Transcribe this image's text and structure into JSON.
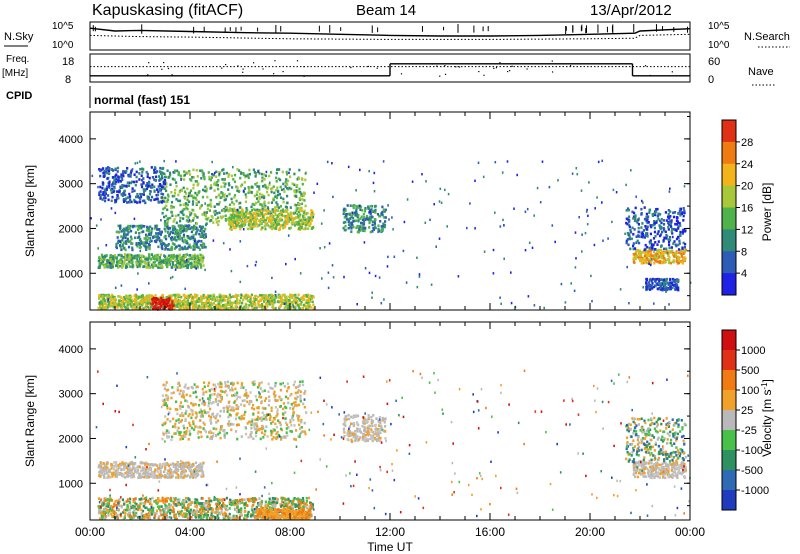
{
  "header": {
    "station": "Kapuskasing (fitACF)",
    "beam": "Beam 14",
    "date": "13/Apr/2012"
  },
  "left_labels": {
    "nsky": "N.Sky",
    "freq": "Freq.",
    "freq_unit": "[MHz]",
    "cpid": "CPID"
  },
  "right_labels": {
    "nsearch": "N.Search",
    "nave": "Nave"
  },
  "cpid_value": "normal (fast) 151",
  "chart_data": [
    {
      "type": "line",
      "title": "N.Sky / N.Search",
      "ylim_log10": [
        0,
        5
      ],
      "y_tick_labels_left": [
        "10^5",
        "10^0"
      ],
      "y_tick_labels_right": [
        "10^5",
        "10^0"
      ],
      "series": [
        {
          "name": "N.Sky",
          "style": "solid",
          "x_hours": [
            0,
            1,
            2,
            4,
            6,
            8,
            10,
            12,
            14,
            16,
            18,
            20,
            21.8,
            22,
            24
          ],
          "log10_values": [
            3.9,
            3.4,
            3.5,
            3.3,
            3.1,
            3.0,
            2.8,
            2.6,
            2.5,
            2.5,
            2.6,
            2.8,
            3.0,
            3.4,
            3.8
          ]
        },
        {
          "name": "N.Search",
          "style": "dotted",
          "x_hours": [
            0,
            2,
            4,
            8,
            12,
            16,
            20,
            21.8,
            22,
            24
          ],
          "log10_values": [
            2.6,
            2.4,
            2.3,
            2.0,
            1.9,
            1.9,
            2.0,
            2.1,
            2.6,
            2.8
          ]
        }
      ]
    },
    {
      "type": "line",
      "title": "Freq / Nave",
      "left_ticks": [
        "18",
        "8"
      ],
      "right_ticks": [
        "60",
        "0"
      ],
      "series": [
        {
          "name": "Freq",
          "style": "solid",
          "segments": [
            {
              "x0": 0,
              "x1": 12,
              "mhz": 10.2
            },
            {
              "x0": 12,
              "x1": 21.7,
              "mhz": 14.5
            },
            {
              "x0": 21.7,
              "x1": 24,
              "mhz": 10.2
            }
          ]
        },
        {
          "name": "Nave",
          "style": "dotted",
          "value": 33
        }
      ]
    },
    {
      "type": "heatmap",
      "title": "Power",
      "xlabel": "",
      "ylabel": "Slant Range [km]",
      "ylim": [
        180,
        4600
      ],
      "y_ticks": [
        1000,
        2000,
        3000,
        4000
      ],
      "x_ticks_hours": [
        0,
        4,
        8,
        12,
        16,
        20,
        24
      ],
      "colorbar": {
        "label": "Power [dB]",
        "ticks": [
          4,
          8,
          12,
          16,
          20,
          24,
          28
        ],
        "colors": [
          "#1f22e6",
          "#2d5cb6",
          "#2f8a78",
          "#4fb24a",
          "#a8c83a",
          "#f2b41a",
          "#f07b12",
          "#e03015",
          "#d0100f"
        ]
      },
      "bands": [
        {
          "x": [
            0.3,
            4.5
          ],
          "range": [
            1150,
            1450
          ],
          "level": 3
        },
        {
          "x": [
            1.0,
            4.6
          ],
          "range": [
            1550,
            2100
          ],
          "level": 2
        },
        {
          "x": [
            2.8,
            8.6
          ],
          "range": [
            2100,
            3350
          ],
          "level": 3
        },
        {
          "x": [
            5.5,
            8.9
          ],
          "range": [
            2000,
            2450
          ],
          "level": 4
        },
        {
          "x": [
            0.3,
            3.0
          ],
          "range": [
            2600,
            3400
          ],
          "level": 1
        },
        {
          "x": [
            0.3,
            8.9
          ],
          "range": [
            230,
            550
          ],
          "level": 4
        },
        {
          "x": [
            2.4,
            3.3
          ],
          "range": [
            220,
            480
          ],
          "level": 8
        },
        {
          "x": [
            10.1,
            11.8
          ],
          "range": [
            1950,
            2550
          ],
          "level": 2
        },
        {
          "x": [
            21.7,
            23.8
          ],
          "range": [
            1250,
            1550
          ],
          "level": 5
        },
        {
          "x": [
            21.4,
            23.8
          ],
          "range": [
            1550,
            2500
          ],
          "level": 1
        },
        {
          "x": [
            22.2,
            23.5
          ],
          "range": [
            650,
            900
          ],
          "level": 1
        }
      ]
    },
    {
      "type": "heatmap",
      "title": "Velocity",
      "xlabel": "Time UT",
      "ylabel": "Slant Range [km]",
      "ylim": [
        180,
        4600
      ],
      "y_ticks": [
        1000,
        2000,
        3000,
        4000
      ],
      "x_ticks_hours": [
        0,
        4,
        8,
        12,
        16,
        20,
        24
      ],
      "x_tick_labels": [
        "00:00",
        "04:00",
        "08:00",
        "12:00",
        "16:00",
        "20:00",
        "00:00"
      ],
      "colorbar": {
        "label": "Velocity [m s-1]",
        "ticks": [
          1000,
          500,
          100,
          25,
          -25,
          -100,
          -500,
          -1000
        ],
        "colors": [
          "#1f3cbf",
          "#2f6ab4",
          "#2f9060",
          "#48c04a",
          "#b9b9b9",
          "#f0a12a",
          "#f07b12",
          "#e03015",
          "#d00f10"
        ]
      },
      "bands": [
        {
          "x": [
            0.3,
            4.5
          ],
          "range": [
            1150,
            1500
          ],
          "class": "gray"
        },
        {
          "x": [
            2.8,
            8.6
          ],
          "range": [
            2000,
            3300
          ],
          "class": "gray-orange"
        },
        {
          "x": [
            0.3,
            8.9
          ],
          "range": [
            230,
            700
          ],
          "class": "green-orange"
        },
        {
          "x": [
            6.6,
            8.8
          ],
          "range": [
            230,
            450
          ],
          "class": "orange"
        },
        {
          "x": [
            10.1,
            11.8
          ],
          "range": [
            1950,
            2550
          ],
          "class": "gray"
        },
        {
          "x": [
            21.7,
            23.8
          ],
          "range": [
            1150,
            1500
          ],
          "class": "gray"
        },
        {
          "x": [
            21.4,
            23.8
          ],
          "range": [
            1500,
            2500
          ],
          "class": "mixed"
        }
      ]
    }
  ],
  "colorbars": {
    "power_label": "Power [dB]",
    "power_ticks": [
      "28",
      "24",
      "20",
      "16",
      "12",
      "8",
      "4"
    ],
    "velocity_label": "Velocity [m s",
    "velocity_label_sup": "-1",
    "velocity_label_end": "]",
    "velocity_ticks": [
      "1000",
      "500",
      "100",
      "25",
      "-25",
      "-100",
      "-500",
      "-1000"
    ]
  },
  "axes": {
    "ylabel": "Slant Range [km]",
    "y_tick_labels": [
      "4000",
      "3000",
      "2000",
      "1000"
    ],
    "x_tick_labels": [
      "00:00",
      "04:00",
      "08:00",
      "12:00",
      "16:00",
      "20:00",
      "00:00"
    ],
    "xlabel": "Time UT"
  }
}
